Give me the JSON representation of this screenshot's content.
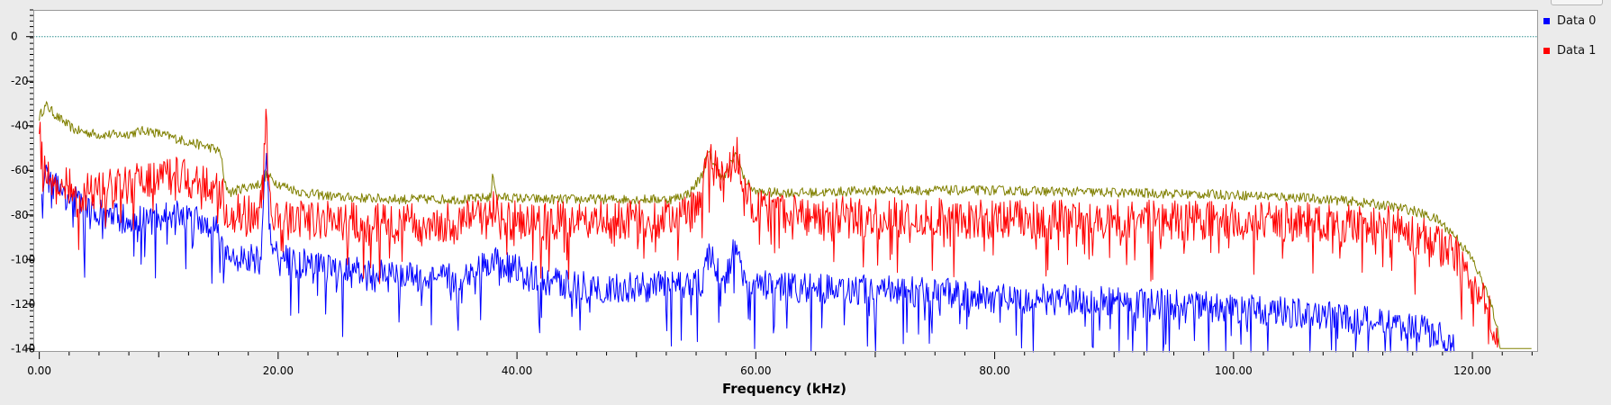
{
  "chart_data": {
    "type": "line",
    "title": "",
    "xlabel": "Frequency (kHz)",
    "ylabel": "",
    "xlim": [
      -0.5,
      125.5
    ],
    "ylim": [
      -141.5,
      12
    ],
    "x_ticks": [
      {
        "value": 0,
        "label": "0.00"
      },
      {
        "value": 20,
        "label": "20.00"
      },
      {
        "value": 40,
        "label": "40.00"
      },
      {
        "value": 60,
        "label": "60.00"
      },
      {
        "value": 80,
        "label": "80.00"
      },
      {
        "value": 100,
        "label": "100.00"
      },
      {
        "value": 120,
        "label": "120.00"
      }
    ],
    "y_ticks": [
      {
        "value": 0,
        "label": "0"
      },
      {
        "value": -20,
        "label": "-20"
      },
      {
        "value": -40,
        "label": "-40"
      },
      {
        "value": -60,
        "label": "-60"
      },
      {
        "value": -80,
        "label": "-80"
      },
      {
        "value": -100,
        "label": "-100"
      },
      {
        "value": -120,
        "label": "-120"
      },
      {
        "value": -140,
        "label": "-140"
      }
    ],
    "reference_line": {
      "y": 0,
      "color": "#2f8f8f",
      "style": "dotted"
    },
    "grid": false,
    "legend": "right",
    "series": [
      {
        "name": "Data 0",
        "color": "#0000ff",
        "x": [
          0.2,
          0.6,
          1.5,
          3,
          5,
          7,
          9,
          11,
          13,
          14.5,
          15.2,
          15.6,
          17,
          18.5,
          19,
          19.4,
          21,
          25,
          30,
          35,
          38,
          42,
          48,
          52,
          54,
          55.5,
          56,
          56.5,
          57.3,
          58.2,
          58.8,
          59.6,
          62,
          66,
          70,
          75,
          80,
          85,
          90,
          95,
          100,
          105,
          110,
          115,
          117.5,
          118.5
        ],
        "y": [
          -72,
          -64,
          -68,
          -74,
          -80,
          -82,
          -83,
          -80,
          -81,
          -85,
          -86,
          -100,
          -98,
          -101,
          -56,
          -95,
          -101,
          -105,
          -108,
          -109,
          -100,
          -110,
          -113,
          -112,
          -111,
          -110,
          -98,
          -102,
          -112,
          -96,
          -104,
          -112,
          -112,
          -113,
          -114,
          -115,
          -117,
          -118,
          -119,
          -120,
          -122,
          -124,
          -127,
          -130,
          -135,
          -141
        ]
      },
      {
        "name": "Data 1",
        "color": "#ff0000",
        "x": [
          0,
          0.2,
          0.5,
          1,
          3,
          5,
          7,
          9,
          11,
          13,
          14.5,
          15.3,
          15.6,
          17,
          18.5,
          19,
          19.4,
          21,
          25,
          30,
          37.5,
          38,
          38.5,
          45,
          52,
          54.5,
          55.5,
          56,
          56.6,
          57.3,
          58,
          58.4,
          59,
          60,
          65,
          70,
          80,
          90,
          100,
          105,
          110,
          113,
          115,
          117,
          119,
          120,
          121,
          121.8,
          122.2
        ],
        "y": [
          -42,
          -55,
          -63,
          -62,
          -70,
          -69,
          -67,
          -64,
          -62,
          -65,
          -68,
          -70,
          -78,
          -80,
          -80,
          -32,
          -78,
          -82,
          -83,
          -84,
          -82,
          -72,
          -82,
          -83,
          -82,
          -80,
          -68,
          -52,
          -60,
          -66,
          -56,
          -52,
          -68,
          -78,
          -80,
          -81,
          -82,
          -82,
          -83,
          -83,
          -84,
          -85,
          -88,
          -93,
          -100,
          -108,
          -118,
          -130,
          -141
        ]
      },
      {
        "name": "",
        "color": "#808000",
        "x": [
          0,
          0.3,
          0.6,
          1.5,
          3,
          5,
          7,
          9,
          11,
          13,
          14.5,
          15.2,
          15.5,
          16,
          17,
          18.5,
          19,
          20,
          22,
          25,
          30,
          36,
          37.8,
          38,
          38.3,
          42,
          48,
          53,
          54.5,
          55.5,
          56,
          56.6,
          57.3,
          58,
          58.4,
          59,
          60,
          65,
          70,
          80,
          90,
          100,
          105,
          110,
          113,
          115,
          117,
          118.5,
          120,
          121,
          122,
          122.3,
          125
        ],
        "y": [
          -36,
          -33,
          -31,
          -36,
          -42,
          -44,
          -44,
          -42,
          -45,
          -48,
          -50,
          -52,
          -66,
          -70,
          -68,
          -66,
          -62,
          -66,
          -70,
          -72,
          -73,
          -73,
          -72,
          -61,
          -72,
          -73,
          -73,
          -73,
          -70,
          -62,
          -52,
          -58,
          -64,
          -56,
          -52,
          -64,
          -70,
          -70,
          -69,
          -69,
          -70,
          -71,
          -72,
          -74,
          -76,
          -78,
          -82,
          -89,
          -100,
          -112,
          -128,
          -140,
          -140
        ]
      }
    ]
  }
}
